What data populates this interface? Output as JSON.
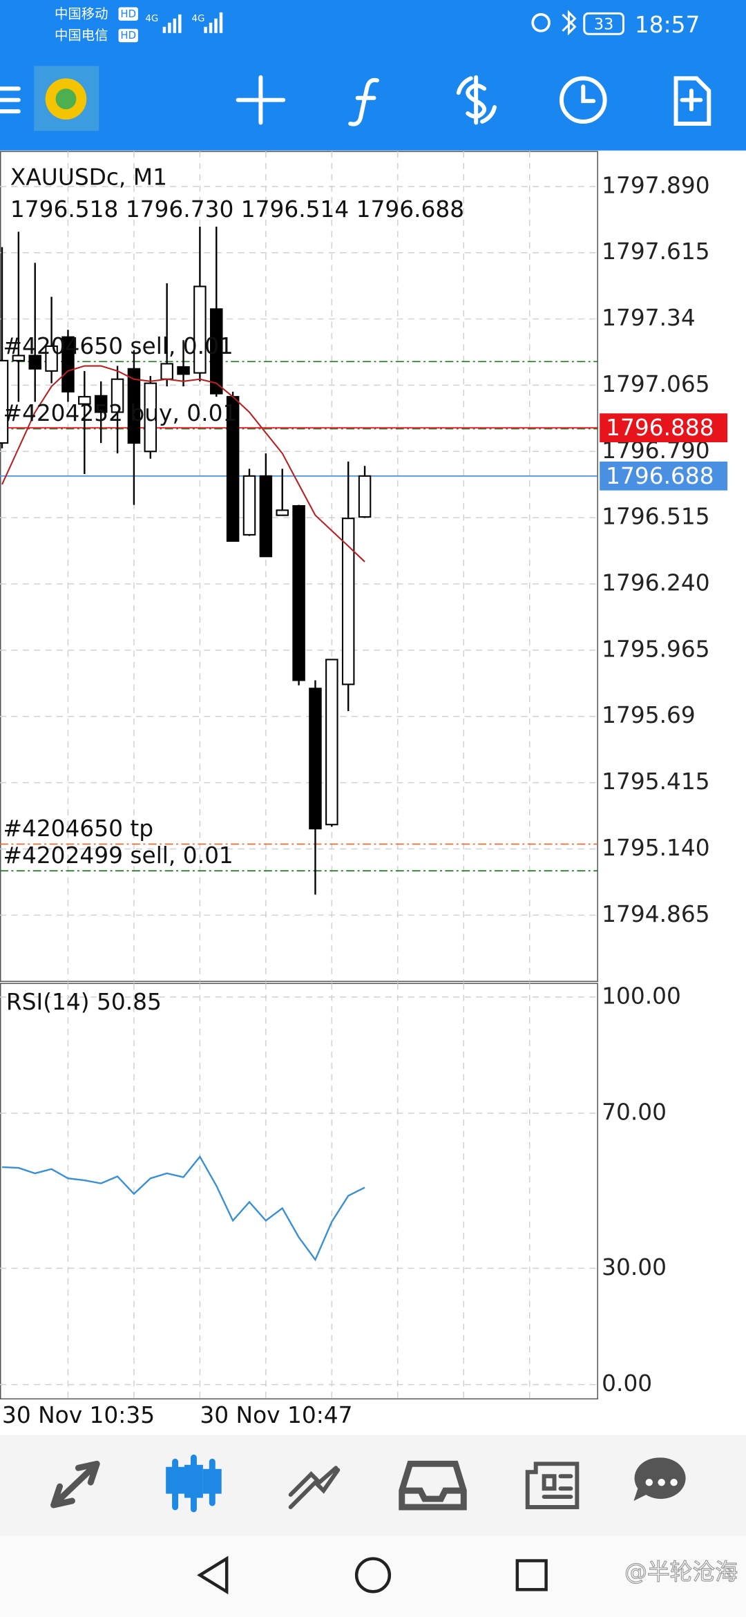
{
  "status_bar": {
    "carrier_1": "中国移动",
    "hd_1": "HD",
    "network_1": "4G",
    "carrier_2": "中国电信",
    "hd_2": "HD",
    "network_2": "4G",
    "battery": "33",
    "time": "18:57"
  },
  "chart_data": [
    {
      "type": "candlestick",
      "title": "XAUUSDc, M1",
      "subtitle": "1796.518 1796.730 1796.514 1796.688",
      "open": [
        1796.825,
        1797.167,
        1797.188,
        1797.124,
        1797.265,
        1796.987,
        1797.021,
        1796.953,
        1797.133,
        1796.79,
        1797.09,
        1797.141,
        1797.116,
        1797.381,
        1797.017,
        1796.444,
        1796.688,
        1796.525,
        1796.564,
        1795.806,
        1795.241,
        1795.823,
        1796.518
      ],
      "high": [
        1797.638,
        1797.702,
        1797.573,
        1797.432,
        1797.295,
        1797.124,
        1797.081,
        1797.145,
        1797.21,
        1797.103,
        1797.488,
        1797.252,
        1797.723,
        1797.723,
        1797.038,
        1796.718,
        1796.782,
        1796.718,
        1796.568,
        1795.84,
        1795.926,
        1796.748,
        1796.73
      ],
      "low": [
        1796.803,
        1796.996,
        1796.996,
        1797.073,
        1796.996,
        1796.696,
        1796.825,
        1796.782,
        1796.568,
        1796.76,
        1797.06,
        1797.06,
        1797.081,
        1797.017,
        1796.418,
        1796.439,
        1796.354,
        1796.525,
        1795.819,
        1794.95,
        1795.232,
        1795.712,
        1796.514
      ],
      "close": [
        1797.167,
        1797.188,
        1797.133,
        1797.227,
        1797.038,
        1797.017,
        1796.953,
        1797.09,
        1796.825,
        1797.073,
        1797.154,
        1797.111,
        1797.475,
        1797.03,
        1796.418,
        1796.688,
        1796.354,
        1796.546,
        1795.84,
        1795.224,
        1795.926,
        1796.512,
        1796.688
      ],
      "up_color": "#ffffff",
      "down_color": "#000000",
      "moving_average": {
        "color": "#b22222",
        "values": [
          1796.653,
          1796.803,
          1796.953,
          1797.06,
          1797.124,
          1797.145,
          1797.145,
          1797.124,
          1797.09,
          1797.081,
          1797.09,
          1797.081,
          1797.09,
          1797.073,
          1797.017,
          1796.953,
          1796.867,
          1796.782,
          1796.653,
          1796.525,
          1796.461,
          1796.397,
          1796.332
        ]
      },
      "ylim": [
        1794.59,
        1798.035
      ],
      "yticks": [
        {
          "value": 1797.89,
          "label": "1797.890"
        },
        1797.615,
        1797.34,
        1797.065,
        {
          "value": 1796.79,
          "label": "1796.790"
        },
        1796.515,
        {
          "value": 1796.24,
          "label": "1796.240"
        },
        1795.965,
        1795.69,
        1795.415,
        {
          "value": 1795.14,
          "label": "1795.140"
        },
        1794.865
      ],
      "grid": true,
      "price_lines": [
        {
          "value": 1796.888,
          "color": "#e8141c"
        },
        {
          "value": 1796.688,
          "color": "#4a90e2"
        }
      ],
      "order_lines": [
        {
          "label": "#4204650 sell, 0.01",
          "value": 1797.163,
          "color": "#2e7d32"
        },
        {
          "label": "#4204252 buy, 0.01",
          "value": 1796.884,
          "color": "#2e7d32"
        },
        {
          "label": "#4204650 tp",
          "value": 1795.16,
          "color": "#e0703a"
        },
        {
          "label": "#4202499 sell, 0.01",
          "value": 1795.049,
          "color": "#2e7d32"
        }
      ]
    },
    {
      "type": "line",
      "title": "RSI(14) 50.85",
      "categories": [
        "30 Nov 10:35",
        null,
        null,
        null,
        null,
        null,
        null,
        null,
        null,
        null,
        null,
        null,
        "30 Nov 10:47",
        null,
        null,
        null,
        null,
        null,
        null,
        null,
        null,
        null,
        null
      ],
      "series": [
        {
          "color": "#3b8ed0",
          "values": [
            56.1,
            55.9,
            54.5,
            55.6,
            53.2,
            52.7,
            51.9,
            53.7,
            49.2,
            53.2,
            54.5,
            53.5,
            58.8,
            51.3,
            42.3,
            47.1,
            42.3,
            45.5,
            38.0,
            32.2,
            42.0,
            48.7,
            50.85
          ]
        }
      ],
      "ylim": [
        -3.7,
        103.5
      ],
      "yticks": [
        {
          "value": 100,
          "label": "100.00"
        },
        {
          "value": 70,
          "label": "70.00"
        },
        {
          "value": 30,
          "label": "30.00"
        },
        {
          "value": 0,
          "label": "0.00"
        }
      ],
      "grid": true
    }
  ],
  "watermark": "@半轮沧海"
}
